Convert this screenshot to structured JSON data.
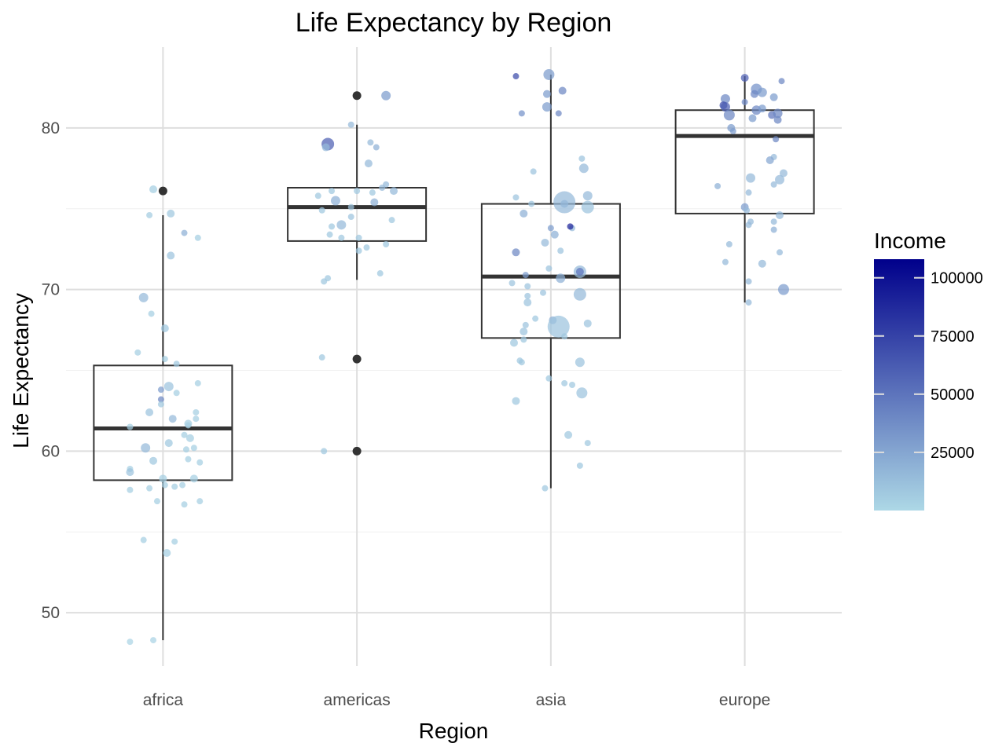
{
  "chart_data": {
    "type": "boxplot",
    "title": "Life Expectancy by Region",
    "xlabel": "Region",
    "ylabel": "Life Expectancy",
    "categories": [
      "africa",
      "americas",
      "asia",
      "europe"
    ],
    "ylim": [
      46.7,
      85
    ],
    "yticks": [
      50,
      60,
      70,
      80
    ],
    "grid": true,
    "legend": {
      "title": "Income",
      "position": "right",
      "ticks": [
        25000,
        50000,
        75000,
        100000
      ],
      "tick_labels": [
        "25000",
        "50000",
        "75000",
        "100000"
      ],
      "range": [
        0,
        108000
      ],
      "color_low": "#add8e6",
      "color_high": "#00008b"
    },
    "boxes": [
      {
        "category": "africa",
        "lower_whisker": 48.3,
        "q1": 58.2,
        "median": 61.4,
        "q3": 65.3,
        "upper_whisker": 74.6,
        "outliers": [
          76.1
        ]
      },
      {
        "category": "americas",
        "lower_whisker": 70.6,
        "q1": 73.0,
        "median": 75.1,
        "q3": 76.3,
        "upper_whisker": 80.2,
        "outliers": [
          82.0,
          65.7,
          60.0
        ]
      },
      {
        "category": "asia",
        "lower_whisker": 57.7,
        "q1": 67.0,
        "median": 70.8,
        "q3": 75.3,
        "upper_whisker": 83.3,
        "outliers": []
      },
      {
        "category": "europe",
        "lower_whisker": 69.2,
        "q1": 74.7,
        "median": 79.5,
        "q3": 81.1,
        "upper_whisker": 83.2,
        "outliers": []
      }
    ],
    "points": {
      "africa": [
        [
          -0.17,
          48.2,
          2000,
          4
        ],
        [
          -0.05,
          48.3,
          2500,
          4
        ],
        [
          -0.05,
          76.2,
          5000,
          5
        ],
        [
          -0.07,
          74.6,
          6000,
          4
        ],
        [
          0.04,
          74.7,
          8000,
          5
        ],
        [
          0.11,
          73.5,
          20000,
          4
        ],
        [
          0.18,
          73.2,
          5000,
          4
        ],
        [
          0.04,
          72.1,
          10000,
          5
        ],
        [
          -0.1,
          69.5,
          15000,
          6
        ],
        [
          -0.06,
          68.5,
          5000,
          4
        ],
        [
          0.01,
          67.6,
          8000,
          5
        ],
        [
          -0.13,
          66.1,
          5000,
          4
        ],
        [
          0.01,
          65.7,
          5000,
          4
        ],
        [
          0.07,
          65.4,
          8000,
          4
        ],
        [
          0.18,
          64.2,
          5000,
          4
        ],
        [
          0.03,
          64.0,
          10000,
          6
        ],
        [
          -0.01,
          63.8,
          30000,
          4
        ],
        [
          0.07,
          63.6,
          5000,
          4
        ],
        [
          -0.01,
          63.2,
          40000,
          4
        ],
        [
          -0.01,
          62.9,
          8000,
          4
        ],
        [
          -0.07,
          62.4,
          10000,
          5
        ],
        [
          0.17,
          62.4,
          5000,
          4
        ],
        [
          0.05,
          62.0,
          15000,
          5
        ],
        [
          0.17,
          62.0,
          5000,
          4
        ],
        [
          0.13,
          61.7,
          5000,
          5
        ],
        [
          0.13,
          61.6,
          5000,
          4
        ],
        [
          -0.17,
          61.5,
          5000,
          4
        ],
        [
          0.11,
          61.0,
          5000,
          4
        ],
        [
          0.14,
          60.8,
          5000,
          5
        ],
        [
          0.03,
          60.5,
          8000,
          5
        ],
        [
          -0.09,
          60.2,
          15000,
          6
        ],
        [
          0.16,
          60.2,
          5000,
          4
        ],
        [
          0.12,
          60.1,
          5000,
          4
        ],
        [
          -0.05,
          59.4,
          8000,
          5
        ],
        [
          0.13,
          59.5,
          5000,
          4
        ],
        [
          0.19,
          59.3,
          5000,
          4
        ],
        [
          -0.17,
          58.9,
          5000,
          4
        ],
        [
          -0.17,
          58.7,
          10000,
          5
        ],
        [
          0.0,
          58.3,
          5000,
          5
        ],
        [
          0.16,
          58.3,
          5000,
          5
        ],
        [
          0.01,
          57.9,
          5000,
          4
        ],
        [
          0.06,
          57.8,
          5000,
          4
        ],
        [
          0.1,
          57.9,
          5000,
          4
        ],
        [
          -0.07,
          57.7,
          5000,
          4
        ],
        [
          -0.17,
          57.6,
          5000,
          4
        ],
        [
          -0.03,
          56.9,
          5000,
          4
        ],
        [
          0.11,
          56.7,
          5000,
          4
        ],
        [
          0.19,
          56.9,
          5000,
          4
        ],
        [
          -0.1,
          54.5,
          5000,
          4
        ],
        [
          0.06,
          54.4,
          5000,
          4
        ],
        [
          0.02,
          53.7,
          5000,
          5
        ]
      ],
      "americas": [
        [
          -0.03,
          80.2,
          15000,
          4
        ],
        [
          0.07,
          79.1,
          15000,
          4
        ],
        [
          -0.15,
          79.0,
          60000,
          8
        ],
        [
          -0.16,
          78.8,
          15000,
          5
        ],
        [
          0.1,
          78.8,
          20000,
          4
        ],
        [
          0.06,
          77.8,
          15000,
          5
        ],
        [
          0.15,
          76.5,
          15000,
          4
        ],
        [
          0.13,
          76.3,
          15000,
          4
        ],
        [
          0.19,
          76.1,
          15000,
          5
        ],
        [
          -0.13,
          76.1,
          8000,
          4
        ],
        [
          0.0,
          76.1,
          8000,
          4
        ],
        [
          0.08,
          76.0,
          8000,
          4
        ],
        [
          -0.2,
          75.8,
          8000,
          4
        ],
        [
          -0.11,
          75.5,
          20000,
          6
        ],
        [
          0.09,
          75.4,
          20000,
          5
        ],
        [
          -0.03,
          75.1,
          10000,
          4
        ],
        [
          -0.18,
          74.9,
          8000,
          4
        ],
        [
          0.18,
          74.3,
          8000,
          4
        ],
        [
          -0.03,
          74.5,
          10000,
          4
        ],
        [
          -0.08,
          74.0,
          15000,
          6
        ],
        [
          -0.13,
          73.9,
          8000,
          4
        ],
        [
          -0.14,
          73.4,
          8000,
          4
        ],
        [
          -0.08,
          73.2,
          8000,
          4
        ],
        [
          0.01,
          73.2,
          8000,
          4
        ],
        [
          0.15,
          72.8,
          8000,
          4
        ],
        [
          0.05,
          72.6,
          8000,
          4
        ],
        [
          0.01,
          72.4,
          8000,
          4
        ],
        [
          -0.15,
          70.7,
          8000,
          4
        ],
        [
          -0.17,
          70.5,
          8000,
          4
        ],
        [
          0.12,
          71.0,
          8000,
          4
        ],
        [
          -0.18,
          65.8,
          8000,
          4
        ],
        [
          -0.17,
          60.0,
          8000,
          4
        ],
        [
          0.15,
          82.0,
          30000,
          6
        ]
      ],
      "asia": [
        [
          -0.18,
          83.2,
          70000,
          4
        ],
        [
          -0.01,
          83.3,
          30000,
          7
        ],
        [
          -0.02,
          82.1,
          30000,
          5
        ],
        [
          0.06,
          82.3,
          40000,
          5
        ],
        [
          -0.15,
          80.9,
          35000,
          4
        ],
        [
          -0.02,
          81.3,
          30000,
          6
        ],
        [
          0.04,
          80.9,
          40000,
          4
        ],
        [
          0.16,
          78.1,
          10000,
          4
        ],
        [
          -0.09,
          77.3,
          10000,
          4
        ],
        [
          0.17,
          77.5,
          15000,
          6
        ],
        [
          -0.18,
          75.7,
          10000,
          4
        ],
        [
          0.19,
          75.8,
          15000,
          6
        ],
        [
          0.07,
          75.3,
          20000,
          5
        ],
        [
          0.07,
          75.4,
          15000,
          14
        ],
        [
          -0.1,
          75.3,
          10000,
          4
        ],
        [
          0.19,
          75.1,
          10000,
          8
        ],
        [
          -0.14,
          74.7,
          20000,
          5
        ],
        [
          0.11,
          73.8,
          15000,
          4
        ],
        [
          0.1,
          73.9,
          90000,
          4
        ],
        [
          0.0,
          73.8,
          30000,
          4
        ],
        [
          0.02,
          73.4,
          20000,
          5
        ],
        [
          -0.03,
          72.9,
          15000,
          5
        ],
        [
          0.05,
          72.4,
          10000,
          4
        ],
        [
          -0.18,
          72.3,
          40000,
          5
        ],
        [
          0.15,
          71.1,
          15000,
          8
        ],
        [
          0.15,
          71.1,
          50000,
          5
        ],
        [
          -0.01,
          71.3,
          10000,
          4
        ],
        [
          -0.13,
          70.9,
          30000,
          4
        ],
        [
          0.05,
          70.7,
          20000,
          6
        ],
        [
          -0.2,
          70.4,
          10000,
          4
        ],
        [
          -0.12,
          70.2,
          10000,
          4
        ],
        [
          -0.04,
          69.8,
          10000,
          4
        ],
        [
          0.15,
          69.7,
          15000,
          8
        ],
        [
          -0.12,
          69.6,
          10000,
          4
        ],
        [
          -0.12,
          69.2,
          10000,
          5
        ],
        [
          -0.08,
          68.2,
          8000,
          4
        ],
        [
          -0.13,
          67.8,
          10000,
          4
        ],
        [
          0.01,
          68.1,
          20000,
          5
        ],
        [
          0.19,
          67.9,
          10000,
          5
        ],
        [
          -0.14,
          67.4,
          10000,
          5
        ],
        [
          0.04,
          67.7,
          10000,
          14
        ],
        [
          0.07,
          67.1,
          8000,
          4
        ],
        [
          -0.19,
          66.7,
          8000,
          5
        ],
        [
          -0.14,
          66.9,
          8000,
          4
        ],
        [
          -0.16,
          65.6,
          8000,
          4
        ],
        [
          -0.15,
          65.5,
          8000,
          4
        ],
        [
          0.15,
          65.5,
          10000,
          6
        ],
        [
          -0.01,
          64.5,
          8000,
          4
        ],
        [
          0.07,
          64.2,
          8000,
          4
        ],
        [
          0.11,
          64.1,
          8000,
          4
        ],
        [
          0.16,
          63.6,
          10000,
          7
        ],
        [
          -0.18,
          63.1,
          8000,
          5
        ],
        [
          0.09,
          61.0,
          8000,
          5
        ],
        [
          0.19,
          60.5,
          8000,
          4
        ],
        [
          0.15,
          59.1,
          8000,
          4
        ],
        [
          -0.03,
          57.7,
          8000,
          4
        ]
      ],
      "europe": [
        [
          0.0,
          83.1,
          60000,
          5
        ],
        [
          0.19,
          82.9,
          40000,
          4
        ],
        [
          0.06,
          82.4,
          35000,
          7
        ],
        [
          0.09,
          82.2,
          30000,
          6
        ],
        [
          -0.1,
          81.8,
          40000,
          6
        ],
        [
          0.05,
          82.1,
          40000,
          5
        ],
        [
          0.15,
          81.9,
          30000,
          5
        ],
        [
          0.0,
          81.6,
          40000,
          4
        ],
        [
          -0.11,
          81.4,
          70000,
          5
        ],
        [
          -0.1,
          81.3,
          60000,
          6
        ],
        [
          0.06,
          81.1,
          40000,
          6
        ],
        [
          0.09,
          81.2,
          30000,
          5
        ],
        [
          0.14,
          80.8,
          50000,
          5
        ],
        [
          0.17,
          80.9,
          40000,
          6
        ],
        [
          0.04,
          80.6,
          30000,
          5
        ],
        [
          -0.08,
          80.8,
          40000,
          7
        ],
        [
          0.17,
          80.5,
          40000,
          5
        ],
        [
          -0.07,
          80.0,
          30000,
          5
        ],
        [
          -0.06,
          79.8,
          30000,
          4
        ],
        [
          0.16,
          79.3,
          40000,
          4
        ],
        [
          0.15,
          78.2,
          15000,
          4
        ],
        [
          0.13,
          78.0,
          25000,
          5
        ],
        [
          0.2,
          77.2,
          15000,
          5
        ],
        [
          0.03,
          76.9,
          15000,
          6
        ],
        [
          0.18,
          76.8,
          15000,
          6
        ],
        [
          -0.14,
          76.4,
          20000,
          4
        ],
        [
          0.15,
          76.5,
          15000,
          4
        ],
        [
          0.02,
          76.0,
          15000,
          4
        ],
        [
          0.0,
          75.1,
          30000,
          5
        ],
        [
          0.01,
          74.9,
          15000,
          4
        ],
        [
          0.18,
          74.6,
          15000,
          5
        ],
        [
          0.15,
          74.2,
          15000,
          4
        ],
        [
          0.03,
          74.2,
          15000,
          4
        ],
        [
          0.02,
          74.0,
          15000,
          4
        ],
        [
          0.15,
          73.7,
          20000,
          4
        ],
        [
          -0.08,
          72.8,
          15000,
          4
        ],
        [
          0.18,
          72.3,
          15000,
          4
        ],
        [
          -0.1,
          71.7,
          15000,
          4
        ],
        [
          0.09,
          71.6,
          15000,
          5
        ],
        [
          0.02,
          70.5,
          15000,
          4
        ],
        [
          0.2,
          70.0,
          30000,
          7
        ],
        [
          0.02,
          69.2,
          15000,
          4
        ]
      ]
    }
  }
}
